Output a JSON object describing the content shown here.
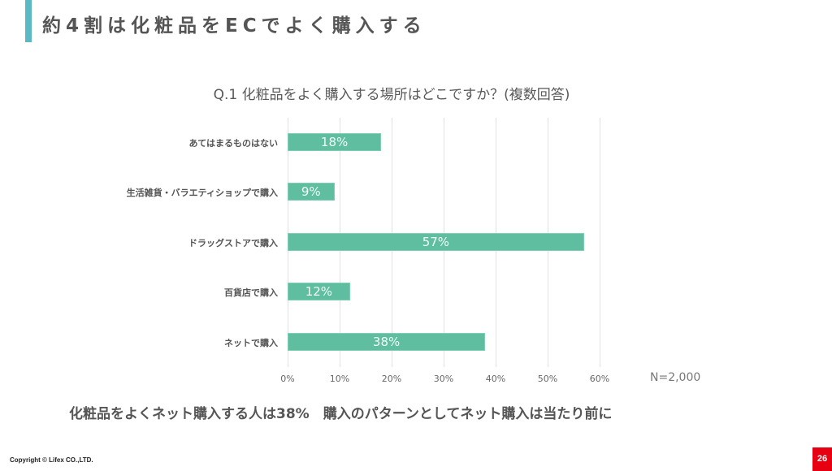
{
  "slide": {
    "title": "約4割は化粧品をECでよく購入する",
    "accent_color": "#5bb8c4",
    "summary": "化粧品をよくネット購入する人は38%　購入のパターンとしてネット購入は当たり前に",
    "copyright": "Copyright © Lifex CO.,LTD.",
    "page_number": "26",
    "page_badge_color": "#e60012"
  },
  "chart_data": {
    "type": "bar",
    "orientation": "horizontal",
    "title": "Q.1 化粧品をよく購入する場所はどこですか？(複数回答)",
    "categories": [
      "あてはまるものはない",
      "生活雑貨・バラエティショップで購入",
      "ドラッグストアで購入",
      "百貨店で購入",
      "ネットで購入"
    ],
    "values": [
      18,
      9,
      57,
      12,
      38
    ],
    "value_labels": [
      "18%",
      "9%",
      "57%",
      "12%",
      "38%"
    ],
    "xlabel": "",
    "ylabel": "",
    "xlim": [
      0,
      60
    ],
    "x_ticks": [
      "0%",
      "10%",
      "20%",
      "30%",
      "40%",
      "50%",
      "60%"
    ],
    "grid": true,
    "bar_color": "#5fbea0",
    "annotation": "N=2,000"
  }
}
